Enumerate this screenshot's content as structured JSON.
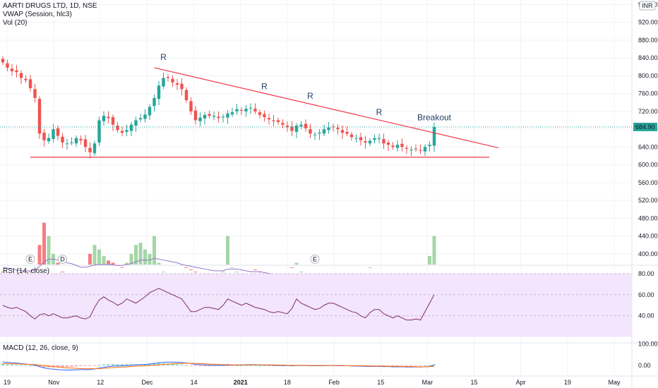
{
  "header": {
    "symbol_line": "AARTI DRUGS LTD, 1D, NSE",
    "vwap_line": "VWAP (Session, hlc3)",
    "vol_line": "Vol (20)",
    "rsi_line": "RSI (14, close)",
    "macd_line": "MACD (12, 26, close, 9)",
    "currency": "INR"
  },
  "colors": {
    "up": "#26a69a",
    "down": "#ef5350",
    "vol_up": "#a5d6a7",
    "vol_down": "#f77c80",
    "rsi_line": "#7e2e6b",
    "rsi_band": "#f3e5fb",
    "trendline": "#f23645",
    "grid": "#f0f3fa",
    "last_price_bg": "#26a69a",
    "vol_ma": "#9575cd",
    "macd_line": "#2962ff",
    "signal_line": "#ff6d00"
  },
  "chart_data": {
    "type": "candlestick",
    "y_ticks": [
      "960.00",
      "920.00",
      "880.00",
      "840.00",
      "800.00",
      "760.00",
      "720.00",
      "680.00",
      "640.00",
      "600.00",
      "560.00",
      "520.00",
      "480.00",
      "440.00",
      "400.00"
    ],
    "price_range": [
      376,
      970
    ],
    "x_ticks": [
      {
        "label": "19",
        "bold": false
      },
      {
        "label": "Nov",
        "bold": false
      },
      {
        "label": "12",
        "bold": false
      },
      {
        "label": "Dec",
        "bold": false
      },
      {
        "label": "14",
        "bold": false
      },
      {
        "label": "2021",
        "bold": true
      },
      {
        "label": "18",
        "bold": false
      },
      {
        "label": "Feb",
        "bold": false
      },
      {
        "label": "15",
        "bold": false
      },
      {
        "label": "Mar",
        "bold": false
      },
      {
        "label": "15",
        "bold": false
      },
      {
        "label": "Apr",
        "bold": false
      },
      {
        "label": "19",
        "bold": false
      },
      {
        "label": "May",
        "bold": false
      }
    ],
    "last_price": "684.90",
    "last_price_value": 684.9,
    "closes": [
      830,
      818,
      810,
      808,
      795,
      790,
      772,
      750,
      670,
      655,
      660,
      680,
      665,
      650,
      648,
      650,
      660,
      655,
      640,
      628,
      648,
      700,
      710,
      705,
      690,
      678,
      672,
      678,
      690,
      700,
      705,
      713,
      730,
      750,
      778,
      795,
      795,
      785,
      780,
      770,
      745,
      720,
      700,
      706,
      712,
      710,
      710,
      705,
      708,
      715,
      718,
      725,
      722,
      726,
      728,
      720,
      712,
      707,
      702,
      698,
      696,
      690,
      684,
      676,
      688,
      690,
      682,
      670,
      668,
      672,
      680,
      684,
      685,
      680,
      672,
      670,
      662,
      660,
      655,
      650,
      654,
      660,
      660,
      648,
      645,
      640,
      645,
      640,
      636,
      634,
      635,
      632,
      640,
      645,
      684.9
    ],
    "volumes": [
      360,
      355,
      350,
      345,
      340,
      350,
      360,
      365,
      420,
      470,
      440,
      400,
      380,
      360,
      355,
      350,
      345,
      340,
      355,
      400,
      420,
      410,
      395,
      385,
      380,
      375,
      370,
      380,
      400,
      420,
      425,
      410,
      400,
      440,
      380,
      360,
      355,
      350,
      345,
      340,
      370,
      365,
      360,
      355,
      350,
      345,
      340,
      345,
      360,
      440,
      370,
      360,
      350,
      345,
      340,
      365,
      360,
      350,
      340,
      335,
      332,
      330,
      340,
      370,
      380,
      360,
      350,
      345,
      340,
      345,
      350,
      355,
      345,
      340,
      345,
      350,
      345,
      340,
      338,
      345,
      370,
      345,
      340,
      340,
      338,
      350,
      345,
      342,
      340,
      338,
      340,
      342,
      345,
      395,
      440
    ],
    "vol_ma": [
      370,
      368,
      366,
      364,
      362,
      362,
      362,
      364,
      372,
      382,
      388,
      388,
      386,
      384,
      380,
      378,
      374,
      370,
      370,
      372,
      375,
      376,
      376,
      376,
      375,
      374,
      374,
      376,
      378,
      382,
      386,
      386,
      386,
      390,
      388,
      386,
      384,
      382,
      380,
      376,
      374,
      372,
      370,
      368,
      366,
      364,
      362,
      362,
      362,
      366,
      366,
      366,
      364,
      362,
      360,
      360,
      360,
      358,
      356,
      354,
      352,
      350,
      350,
      352,
      354,
      354,
      354,
      352,
      350,
      348,
      348,
      348,
      348,
      346,
      346,
      346,
      346,
      344,
      344,
      344,
      346,
      346,
      346,
      344,
      344,
      344,
      344,
      344,
      343,
      343,
      342,
      342,
      343,
      348,
      354
    ],
    "volume_axis_labels": [
      "520.00",
      "480.00",
      "440.00",
      "400.00"
    ],
    "annotations": [
      {
        "text": "R",
        "at_index": 35,
        "at_price": 835
      },
      {
        "text": "R",
        "at_index": 57,
        "at_price": 770
      },
      {
        "text": "R",
        "at_index": 67,
        "at_price": 748
      },
      {
        "text": "R",
        "at_index": 82,
        "at_price": 712
      },
      {
        "text": "Breakout",
        "at_index": 94,
        "at_price": 700
      }
    ],
    "trendlines": [
      {
        "name": "descending-resistance",
        "from": {
          "index": 33,
          "price": 818
        },
        "to": {
          "index": 108,
          "price": 638
        }
      },
      {
        "name": "horizontal-support",
        "from": {
          "index": 6,
          "price": 617
        },
        "to": {
          "index": 106,
          "price": 617
        }
      }
    ],
    "event_markers": [
      {
        "text": "E",
        "at_index": 6
      },
      {
        "text": "D",
        "at_index": 13
      },
      {
        "text": "E",
        "at_index": 68
      }
    ],
    "rsi": {
      "ticks": [
        "80.00",
        "60.00",
        "40.00"
      ],
      "range": [
        15,
        88
      ],
      "band": [
        20,
        80
      ],
      "values": [
        50,
        48,
        47,
        48,
        46,
        44,
        40,
        37,
        41,
        42,
        40,
        42,
        40,
        38,
        38,
        39,
        40,
        38,
        37,
        39,
        48,
        55,
        58,
        55,
        53,
        50,
        52,
        56,
        54,
        52,
        55,
        58,
        62,
        64,
        66,
        64,
        62,
        60,
        58,
        56,
        50,
        44,
        44,
        46,
        48,
        48,
        47,
        46,
        50,
        56,
        54,
        52,
        50,
        52,
        50,
        48,
        47,
        46,
        44,
        43,
        44,
        43,
        42,
        47,
        56,
        52,
        50,
        48,
        46,
        47,
        50,
        52,
        52,
        50,
        48,
        46,
        44,
        43,
        40,
        38,
        43,
        46,
        46,
        42,
        40,
        38,
        40,
        38,
        36,
        36,
        37,
        36,
        44,
        52,
        60
      ]
    },
    "macd": {
      "ticks": [
        "100.00",
        "0.00"
      ],
      "range": [
        -50,
        105
      ],
      "macd_line": [
        16,
        14,
        12,
        10,
        8,
        6,
        4,
        0,
        -6,
        -12,
        -16,
        -18,
        -20,
        -21,
        -22,
        -22,
        -21,
        -20,
        -20,
        -20,
        -17,
        -13,
        -9,
        -6,
        -4,
        -3,
        -2,
        -1,
        0,
        2,
        3,
        4,
        6,
        9,
        12,
        14,
        15,
        15,
        14,
        13,
        11,
        8,
        5,
        3,
        2,
        1,
        0,
        0,
        0,
        1,
        1,
        2,
        2,
        3,
        3,
        3,
        2,
        2,
        1,
        0,
        0,
        -1,
        -1,
        -2,
        -1,
        -1,
        -1,
        -2,
        -2,
        -2,
        -2,
        -1,
        -1,
        -2,
        -2,
        -2,
        -3,
        -4,
        -4,
        -5,
        -5,
        -5,
        -5,
        -6,
        -6,
        -7,
        -7,
        -7,
        -8,
        -8,
        -8,
        -8,
        -7,
        -5,
        1
      ],
      "signal_line": [
        8,
        8,
        7,
        7,
        6,
        5,
        4,
        3,
        1,
        -1,
        -4,
        -6,
        -8,
        -10,
        -12,
        -13,
        -14,
        -15,
        -16,
        -16,
        -16,
        -15,
        -14,
        -12,
        -11,
        -9,
        -8,
        -7,
        -6,
        -4,
        -3,
        -2,
        -1,
        0,
        2,
        4,
        6,
        7,
        8,
        9,
        10,
        9,
        9,
        8,
        7,
        6,
        5,
        4,
        3,
        3,
        2,
        2,
        2,
        2,
        2,
        2,
        2,
        2,
        2,
        2,
        1,
        1,
        0,
        0,
        0,
        0,
        0,
        -1,
        -1,
        -1,
        -1,
        -1,
        -1,
        -1,
        -1,
        -2,
        -2,
        -2,
        -2,
        -3,
        -3,
        -4,
        -4,
        -4,
        -5,
        -5,
        -5,
        -6,
        -6,
        -6,
        -7,
        -7,
        -7,
        -6,
        -5
      ]
    }
  }
}
